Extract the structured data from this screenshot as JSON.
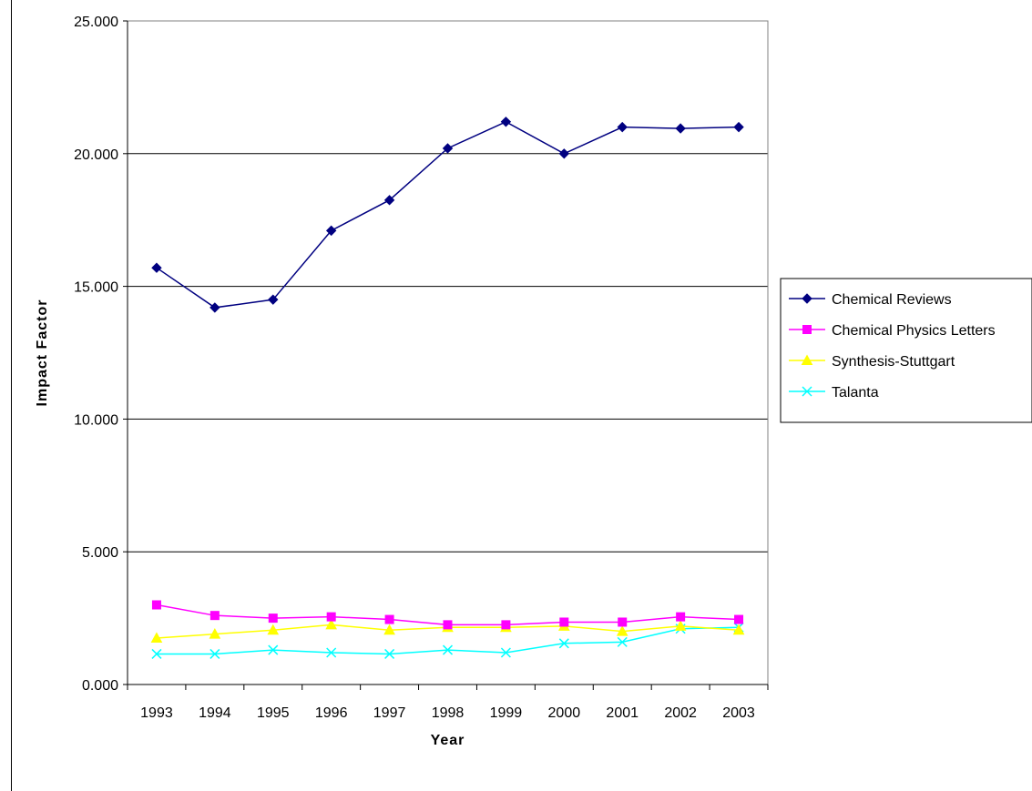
{
  "chart_data": {
    "type": "line",
    "title": "",
    "xlabel": "Year",
    "ylabel": "Impact Factor",
    "categories": [
      "1993",
      "1994",
      "1995",
      "1996",
      "1997",
      "1998",
      "1999",
      "2000",
      "2001",
      "2002",
      "2003"
    ],
    "y_tick_labels": [
      "0.000",
      "5.000",
      "10.000",
      "15.000",
      "20.000",
      "25.000"
    ],
    "ylim": [
      0,
      25
    ],
    "grid": "horizontal",
    "legend_position": "right",
    "series": [
      {
        "name": "Chemical Reviews",
        "color": "#000080",
        "marker": "diamond",
        "values": [
          15.7,
          14.2,
          14.5,
          17.1,
          18.25,
          20.2,
          21.2,
          20.0,
          21.0,
          20.95,
          21.0
        ]
      },
      {
        "name": "Chemical Physics Letters",
        "color": "#ff00ff",
        "marker": "square",
        "values": [
          3.0,
          2.6,
          2.5,
          2.55,
          2.45,
          2.25,
          2.25,
          2.35,
          2.35,
          2.55,
          2.45
        ]
      },
      {
        "name": "Synthesis-Stuttgart",
        "color": "#ffff00",
        "marker": "triangle",
        "values": [
          1.75,
          1.9,
          2.05,
          2.25,
          2.05,
          2.15,
          2.15,
          2.2,
          2.0,
          2.2,
          2.05
        ]
      },
      {
        "name": "Talanta",
        "color": "#00ffff",
        "marker": "x",
        "values": [
          1.15,
          1.15,
          1.3,
          1.2,
          1.15,
          1.3,
          1.2,
          1.55,
          1.6,
          2.1,
          2.15
        ]
      }
    ]
  }
}
